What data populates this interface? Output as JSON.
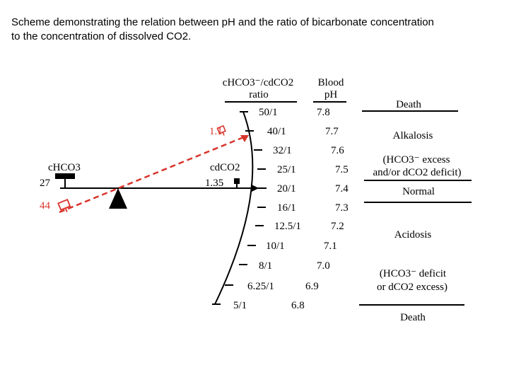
{
  "caption": {
    "line1": "Scheme demonstrating the relation between pH and the ratio of bicarbonate concentration",
    "line2": "to the concentration of dissolved CO2."
  },
  "headers": {
    "ratio_line1": "cHCO3⁻/cdCO2",
    "ratio_line2": "ratio",
    "ph_line1": "Blood",
    "ph_line2": "pH"
  },
  "scale": [
    {
      "ratio": "50/1",
      "ph": "7.8"
    },
    {
      "ratio": "40/1",
      "ph": "7.7"
    },
    {
      "ratio": "32/1",
      "ph": "7.6"
    },
    {
      "ratio": "25/1",
      "ph": "7.5"
    },
    {
      "ratio": "20/1",
      "ph": "7.4"
    },
    {
      "ratio": "16/1",
      "ph": "7.3"
    },
    {
      "ratio": "12.5/1",
      "ph": "7.2"
    },
    {
      "ratio": "10/1",
      "ph": "7.1"
    },
    {
      "ratio": "8/1",
      "ph": "7.0"
    },
    {
      "ratio": "6.25/1",
      "ph": "6.9"
    },
    {
      "ratio": "5/1",
      "ph": "6.8"
    }
  ],
  "states": {
    "death_top": "Death",
    "alkalosis": "Alkalosis",
    "alkalosis_cause_1": "(HCO3⁻ excess",
    "alkalosis_cause_2": "and/or dCO2 deficit)",
    "normal": "Normal",
    "acidosis": "Acidosis",
    "acidosis_cause_1": "(HCO3⁻ deficit",
    "acidosis_cause_2": "or dCO2 excess)",
    "death_bottom": "Death"
  },
  "balance": {
    "left_label": "cHCO3",
    "left_value": "27",
    "right_label": "cdCO2",
    "right_value": "1.35",
    "tilted_left_value": "44",
    "tilted_right_value": "1.1"
  },
  "colors": {
    "ink": "#000000",
    "red": "#d9342b"
  }
}
